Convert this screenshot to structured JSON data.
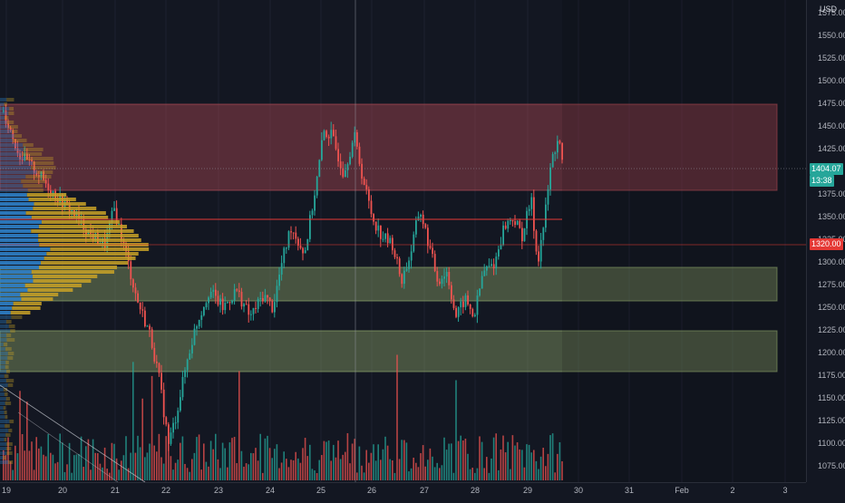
{
  "price_scale": {
    "currency": "USD",
    "ticks": [
      "1575.00",
      "1550.00",
      "1525.00",
      "1500.00",
      "1475.00",
      "1450.00",
      "1425.00",
      "1375.00",
      "1350.00",
      "1325.00",
      "1300.00",
      "1275.00",
      "1250.00",
      "1225.00",
      "1200.00",
      "1175.00",
      "1150.00",
      "1125.00",
      "1100.00",
      "1075.00"
    ],
    "last_price_label": "1404.07",
    "countdown_label": "13:38",
    "level_label": "1320.00"
  },
  "time_axis": {
    "ticks": [
      "19",
      "20",
      "21",
      "22",
      "23",
      "24",
      "25",
      "26",
      "27",
      "28",
      "29",
      "30",
      "31",
      "Feb",
      "2",
      "3"
    ]
  },
  "colors": {
    "background": "#131722",
    "up": "#26a69a",
    "down": "#ef5350",
    "resistance_zone": "#b24b55",
    "support_zone": "#8fa86b",
    "volume_profile_blue": "#2f80c8",
    "volume_profile_gold": "#c9a227",
    "horizontal_line": "#e53935",
    "last_price_tag": "#26a69a",
    "level_tag": "#e53935"
  },
  "chart_data": {
    "type": "candlestick",
    "y_range": [
      1060,
      1590
    ],
    "zones": [
      {
        "kind": "resistance",
        "from": 1380,
        "to": 1475
      },
      {
        "kind": "support",
        "from": 1258,
        "to": 1295
      },
      {
        "kind": "support",
        "from": 1180,
        "to": 1225
      }
    ],
    "horizontal_lines": [
      1348,
      1320
    ],
    "last_price": 1404.07,
    "volume_profile": "visible-range, left aligned",
    "x_labels": [
      "19",
      "20",
      "21",
      "22",
      "23",
      "24",
      "25",
      "26",
      "27",
      "28",
      "29",
      "30",
      "31",
      "Feb",
      "2",
      "3"
    ]
  }
}
